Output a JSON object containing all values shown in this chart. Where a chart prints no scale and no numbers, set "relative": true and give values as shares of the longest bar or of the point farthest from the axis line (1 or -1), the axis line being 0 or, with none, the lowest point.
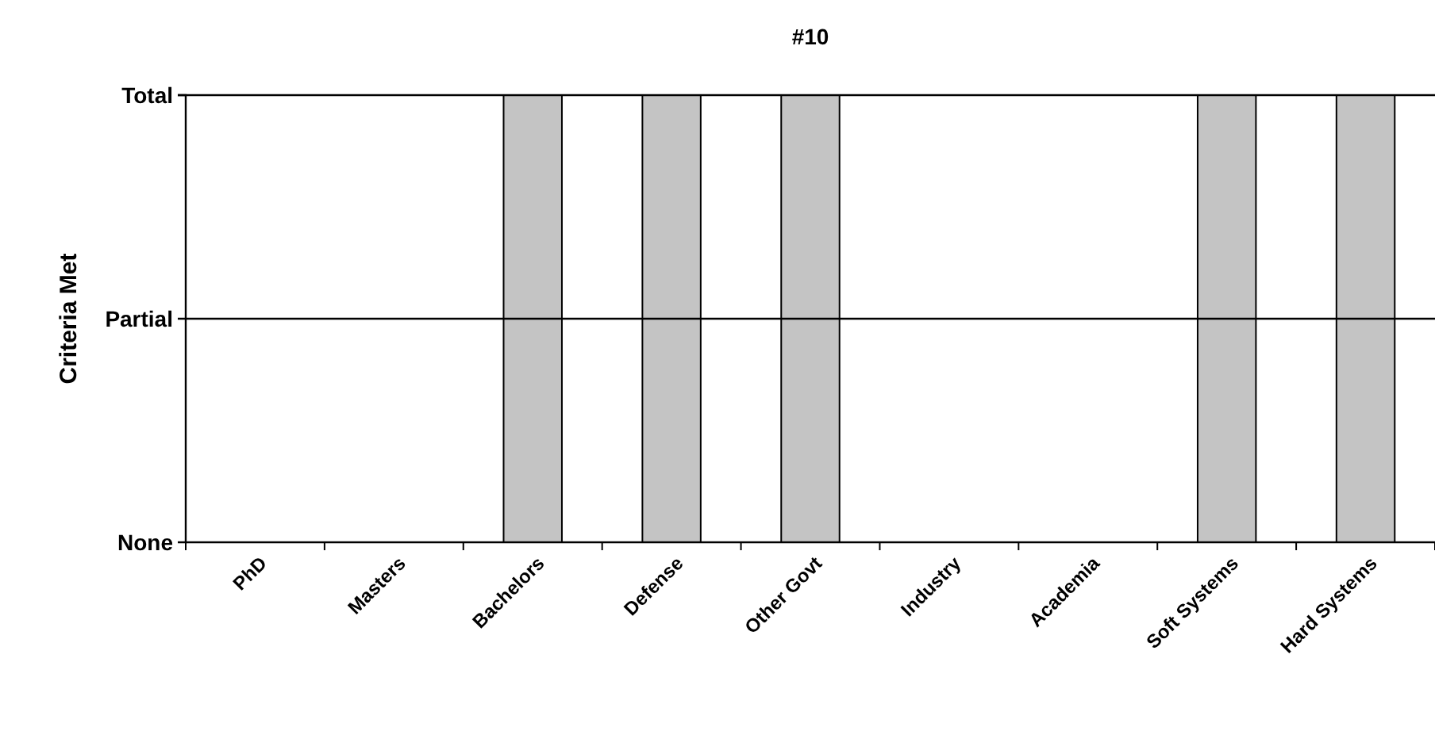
{
  "chart_data": {
    "type": "bar",
    "title": "#10",
    "ylabel": "Criteria Met",
    "categories": [
      "PhD",
      "Masters",
      "Bachelors",
      "Defense",
      "Other Govt",
      "Industry",
      "Academia",
      "Soft Systems",
      "Hard Systems"
    ],
    "values": [
      0,
      0,
      1,
      1,
      1,
      0,
      0,
      1,
      1
    ],
    "color": "#c4c4c4",
    "relative": true,
    "annotations": [
      "None"
    ],
    "ref_lines": [
      {
        "axis": "y",
        "value": 0.5,
        "label": "Partial"
      },
      {
        "axis": "y",
        "value": 1,
        "label": "Total"
      }
    ]
  }
}
